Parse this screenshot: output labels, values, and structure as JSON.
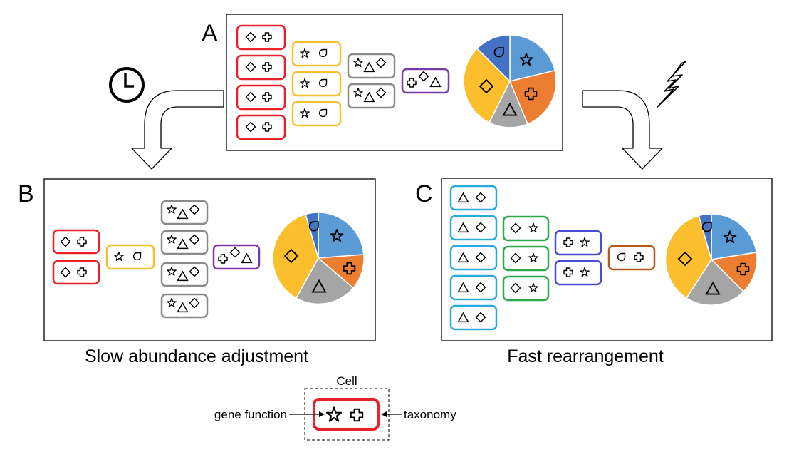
{
  "panels": {
    "a": {
      "label": "A"
    },
    "b": {
      "label": "B",
      "caption": "Slow abundance adjustment"
    },
    "c": {
      "label": "C",
      "caption": "Fast rearrangement"
    }
  },
  "legend": {
    "title": "Cell",
    "gene_function": "gene function",
    "taxonomy": "taxonomy"
  },
  "icons": [
    "clock-icon",
    "lightning-icon",
    "curved-arrow-down-icon"
  ],
  "colors": {
    "red": "#e8212b",
    "yellow": "#f7c12b",
    "gray": "#8a8a8a",
    "purple": "#7a3aa6",
    "cyan": "#2aa9dd",
    "green": "#2ea84a",
    "blue_violet": "#4b4bd6",
    "brown": "#b45a1e",
    "pie_blue": "#5b9bd5",
    "pie_orange": "#ed7d31",
    "pie_gray": "#a5a5a5",
    "pie_yellow": "#fbbf2e",
    "pie_dark_blue": "#4472c4"
  }
}
